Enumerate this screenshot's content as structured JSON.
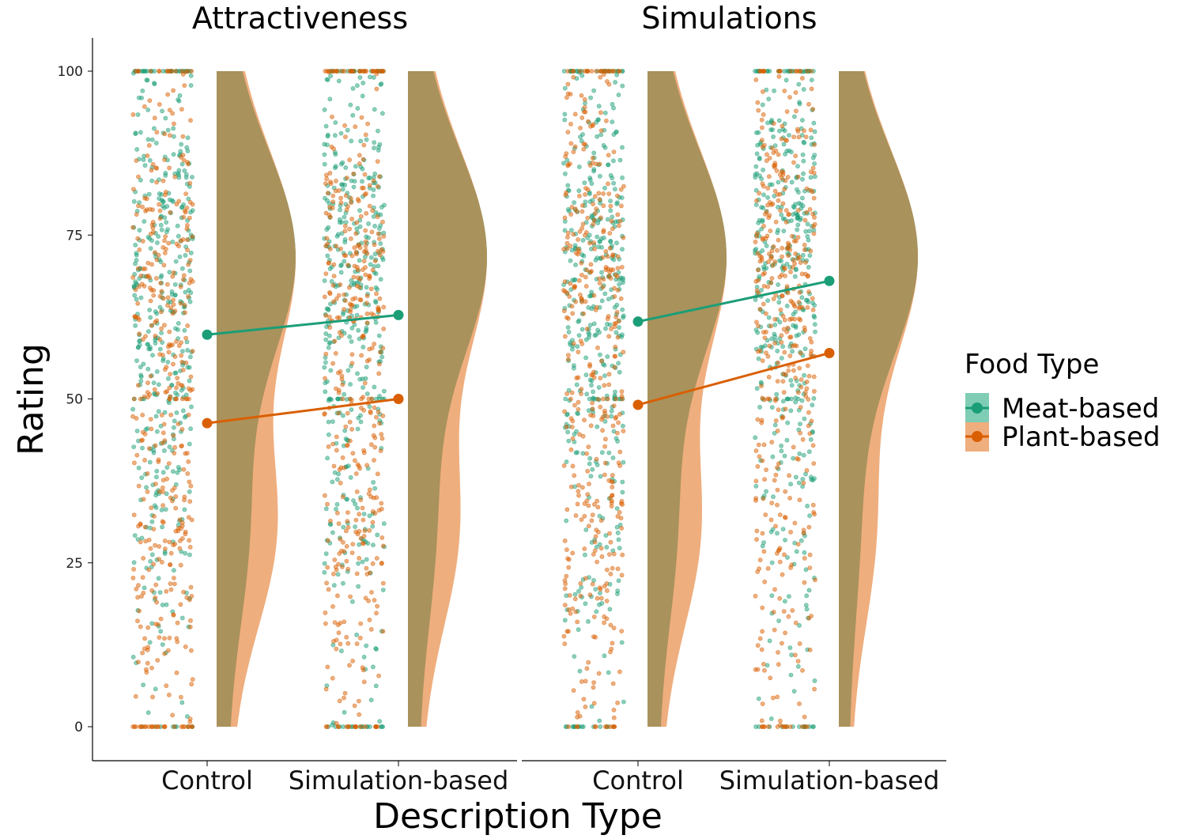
{
  "chart_data": {
    "type": "raincloud",
    "xlabel": "Description Type",
    "ylabel": "Rating",
    "ylim": [
      0,
      100
    ],
    "yticks": [
      0,
      25,
      50,
      75,
      100
    ],
    "categories": [
      "Control",
      "Simulation-based"
    ],
    "legend": {
      "title": "Food Type",
      "placement": "right",
      "entries": [
        "Meat-based",
        "Plant-based"
      ]
    },
    "colors": {
      "Meat-based": "#1b9e77",
      "Plant-based": "#d95f02",
      "Meat-based_density": "#7fcdb4",
      "Plant-based_density": "#efae7e",
      "overlap": "#a9925c"
    },
    "facets": [
      {
        "title": "Attractiveness",
        "series": [
          {
            "name": "Meat-based",
            "means": [
              59.8,
              62.8
            ]
          },
          {
            "name": "Plant-based",
            "means": [
              46.3,
              50.0
            ]
          }
        ]
      },
      {
        "title": "Simulations",
        "series": [
          {
            "name": "Meat-based",
            "means": [
              61.8,
              68.0
            ]
          },
          {
            "name": "Plant-based",
            "means": [
              49.1,
              57.0
            ]
          }
        ]
      }
    ]
  }
}
